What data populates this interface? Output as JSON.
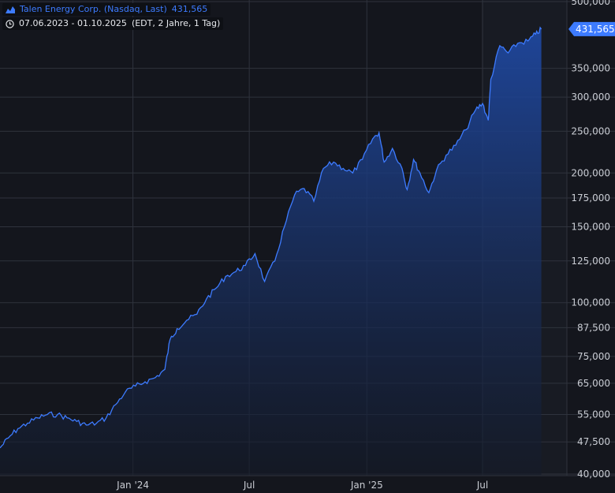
{
  "legend": {
    "series_name": "Talen Energy Corp. (Nasdaq, Last)",
    "last_value": "431,565",
    "date_range": "07.06.2023 - 01.10.2025",
    "range_info": "(EDT, 2 Jahre, 1 Tag)",
    "series_icon": "area-chart-icon",
    "range_icon": "clock-icon"
  },
  "colors": {
    "background": "#14161d",
    "grid": "#2f333d",
    "line": "#3d7bff",
    "fill_top": "#1f4aa6",
    "fill_bottom": "#141a28",
    "text": "#c9ccd3",
    "price_tag": "#3d7bff"
  },
  "chart_data": {
    "type": "area",
    "scale": "log",
    "title": "Talen Energy Corp. (Nasdaq, Last)",
    "ylim": [
      40000,
      500000
    ],
    "y_ticks": [
      "500,000",
      "350,000",
      "300,000",
      "250,000",
      "200,000",
      "175,000",
      "150,000",
      "125,000",
      "100,000",
      "87,500",
      "75,000",
      "65,000",
      "55,000",
      "47,500",
      "40,000"
    ],
    "x_ticks": [
      {
        "label": "Jan '24",
        "date": "2024-01-01"
      },
      {
        "label": "Jul",
        "date": "2024-07-01"
      },
      {
        "label": "Jan '25",
        "date": "2025-01-01"
      },
      {
        "label": "Jul",
        "date": "2025-07-01"
      }
    ],
    "last_value_label": "431,565",
    "last_value": 431565,
    "series": [
      {
        "name": "Talen Energy Corp. (Nasdaq, Last)",
        "points": [
          [
            "2023-06-07",
            46000
          ],
          [
            "2023-06-20",
            48500
          ],
          [
            "2023-07-05",
            51000
          ],
          [
            "2023-07-20",
            52500
          ],
          [
            "2023-08-05",
            54000
          ],
          [
            "2023-08-20",
            55000
          ],
          [
            "2023-09-05",
            55000
          ],
          [
            "2023-09-20",
            54000
          ],
          [
            "2023-10-05",
            53000
          ],
          [
            "2023-10-20",
            52000
          ],
          [
            "2023-11-05",
            52500
          ],
          [
            "2023-11-20",
            54000
          ],
          [
            "2023-12-05",
            58000
          ],
          [
            "2023-12-20",
            62000
          ],
          [
            "2024-01-05",
            64000
          ],
          [
            "2024-01-20",
            65500
          ],
          [
            "2024-02-05",
            67000
          ],
          [
            "2024-02-20",
            70000
          ],
          [
            "2024-02-28",
            82000
          ],
          [
            "2024-03-10",
            87000
          ],
          [
            "2024-03-25",
            91000
          ],
          [
            "2024-04-10",
            94000
          ],
          [
            "2024-04-25",
            102000
          ],
          [
            "2024-05-10",
            108000
          ],
          [
            "2024-05-25",
            115000
          ],
          [
            "2024-06-10",
            118000
          ],
          [
            "2024-06-25",
            122000
          ],
          [
            "2024-07-10",
            130000
          ],
          [
            "2024-07-25",
            112000
          ],
          [
            "2024-08-10",
            125000
          ],
          [
            "2024-08-25",
            150000
          ],
          [
            "2024-09-10",
            178000
          ],
          [
            "2024-09-25",
            184000
          ],
          [
            "2024-10-10",
            172000
          ],
          [
            "2024-10-25",
            205000
          ],
          [
            "2024-11-10",
            212000
          ],
          [
            "2024-11-25",
            205000
          ],
          [
            "2024-12-10",
            200000
          ],
          [
            "2024-12-25",
            215000
          ],
          [
            "2025-01-10",
            240000
          ],
          [
            "2025-01-20",
            248000
          ],
          [
            "2025-01-28",
            212000
          ],
          [
            "2025-02-10",
            228000
          ],
          [
            "2025-02-25",
            205000
          ],
          [
            "2025-03-05",
            183000
          ],
          [
            "2025-03-15",
            215000
          ],
          [
            "2025-03-25",
            200000
          ],
          [
            "2025-04-08",
            180000
          ],
          [
            "2025-04-20",
            203000
          ],
          [
            "2025-05-05",
            220000
          ],
          [
            "2025-05-20",
            232000
          ],
          [
            "2025-06-05",
            252000
          ],
          [
            "2025-06-20",
            280000
          ],
          [
            "2025-07-01",
            290000
          ],
          [
            "2025-07-10",
            265000
          ],
          [
            "2025-07-14",
            330000
          ],
          [
            "2025-07-28",
            395000
          ],
          [
            "2025-08-10",
            380000
          ],
          [
            "2025-08-25",
            400000
          ],
          [
            "2025-09-10",
            405000
          ],
          [
            "2025-09-22",
            420000
          ],
          [
            "2025-10-01",
            431565
          ]
        ]
      }
    ]
  }
}
